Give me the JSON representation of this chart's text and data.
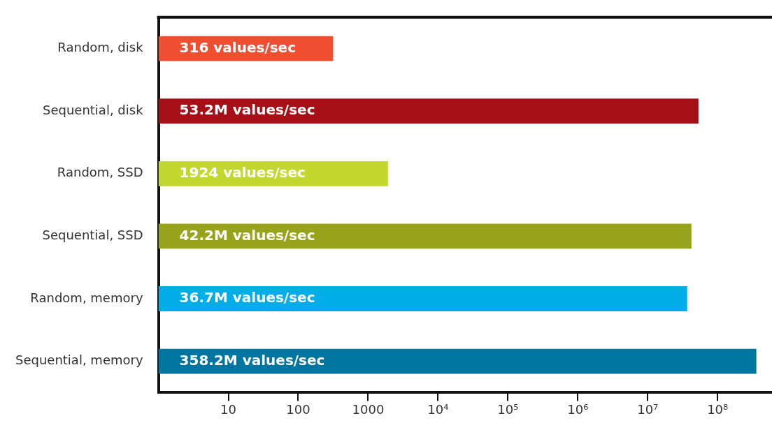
{
  "chart_data": {
    "type": "bar",
    "orientation": "horizontal",
    "log": "x",
    "categories": [
      "Random, disk",
      "Sequential, disk",
      "Random, SSD",
      "Sequential, SSD",
      "Random, memory",
      "Sequential, memory"
    ],
    "values": [
      316,
      53200000,
      1924,
      42200000,
      36700000,
      358200000
    ],
    "colors": [
      "#f04e30",
      "#a50f15",
      "#c2d82e",
      "#97a31a",
      "#00ade8",
      "#0075a0"
    ],
    "value_labels": [
      "316 values/sec",
      "53.2M values/sec",
      "1924 values/sec",
      "42.2M values/sec",
      "36.7M values/sec",
      "358.2M values/sec"
    ],
    "xlim": [
      1,
      600000000
    ],
    "xticks": [
      10,
      100,
      1000,
      {
        "value": 10000,
        "label": "10⁴"
      },
      {
        "value": 100000,
        "label": "10⁵"
      },
      {
        "value": 1000000,
        "label": "10⁶"
      },
      {
        "value": 10000000,
        "label": "10⁷"
      },
      {
        "value": 100000000,
        "label": "10⁸"
      }
    ],
    "grid": false,
    "legend": false
  }
}
